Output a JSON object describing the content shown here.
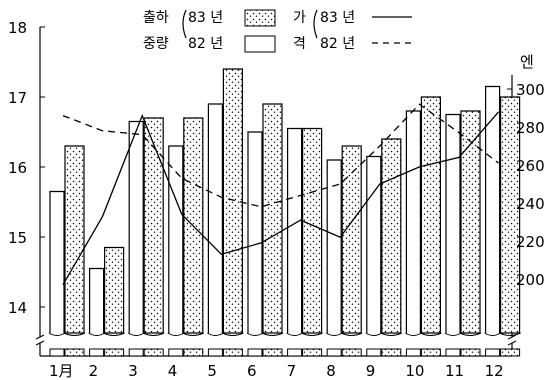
{
  "chart_data": {
    "type": "bar",
    "categories": [
      "1月",
      "2",
      "3",
      "4",
      "5",
      "6",
      "7",
      "8",
      "9",
      "10",
      "11",
      "12"
    ],
    "series": [
      {
        "name": "83 년",
        "kind": "bar",
        "axis": "left",
        "pattern": "dotted",
        "values": [
          16.3,
          14.85,
          16.7,
          16.7,
          17.4,
          16.9,
          16.55,
          16.3,
          16.4,
          17.0,
          16.8,
          17.0
        ]
      },
      {
        "name": "82 년",
        "kind": "bar",
        "axis": "left",
        "pattern": "plain",
        "values": [
          15.65,
          14.55,
          16.65,
          16.3,
          16.9,
          16.5,
          16.55,
          16.1,
          16.15,
          16.8,
          16.75,
          17.15
        ]
      },
      {
        "name": "83 년",
        "kind": "line",
        "axis": "right",
        "style": "solid",
        "values": [
          197,
          233,
          286,
          234,
          213,
          219,
          231,
          222,
          250,
          259,
          264,
          288
        ]
      },
      {
        "name": "82 년",
        "kind": "line",
        "axis": "right",
        "style": "dashed",
        "values": [
          286,
          278,
          276,
          253,
          243,
          238,
          244,
          250,
          270,
          292,
          277,
          261
        ]
      }
    ],
    "left_axis": {
      "ylim": [
        13.8,
        18
      ],
      "ticks": [
        "18",
        "17",
        "16",
        "15",
        "14"
      ]
    },
    "right_axis": {
      "unit_label": "엔",
      "ylim": [
        180,
        300
      ],
      "ticks": [
        "300",
        "280",
        "260",
        "240",
        "220",
        "200"
      ]
    },
    "legend": {
      "group1_label": [
        "출하",
        "중량"
      ],
      "group2_label": [
        "가",
        "격"
      ],
      "bar83": "83 년",
      "bar82": "82 년",
      "line83": "83 년",
      "line82": "82 년",
      "placement": "top"
    },
    "grid": false
  }
}
